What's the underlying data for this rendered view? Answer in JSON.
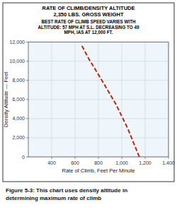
{
  "chart_data": {
    "type": "line",
    "title": "RATE OF CLIMB/DENSITY ALTITUDE\n2,350 LBS. GROSS WEIGHT",
    "subtitle": "BEST RATE OF CLIMB SPEED VARIES WITH\nALTITUDE: 57 MPH AT S.L. DECREASING TO 49\nMPH, IAS AT 12,000 FT.",
    "x_label": "Rate of Climb, Feet Per Minute",
    "y_label": "Density Altitude — Feet",
    "annotations": [
      "Figure 5-3: This chart uses density altitude in",
      "determining maximum rate of climb"
    ],
    "x": [
      1150,
      1050,
      950,
      830,
      720,
      650
    ],
    "values": [
      0,
      3000,
      5500,
      8000,
      10200,
      11800
    ],
    "color": "#cc2200",
    "line_style": "dashed",
    "xlim": [
      200,
      1400
    ],
    "ylim": [
      0,
      12000
    ],
    "xticks": [
      400,
      600,
      800,
      {
        "value": 1000,
        "label": "1,000"
      },
      {
        "value": 1200,
        "label": "1,200"
      },
      {
        "value": 1400,
        "label": "1,400"
      }
    ],
    "yticks": [
      0,
      {
        "value": 2000,
        "label": "2,000"
      },
      {
        "value": 4000,
        "label": "4,000"
      },
      {
        "value": 6000,
        "label": "6,000"
      },
      {
        "value": 8000,
        "label": "8,000"
      },
      {
        "value": 10000,
        "label": "10,000"
      },
      {
        "value": 12000,
        "label": "12,000"
      }
    ],
    "grid": true
  }
}
